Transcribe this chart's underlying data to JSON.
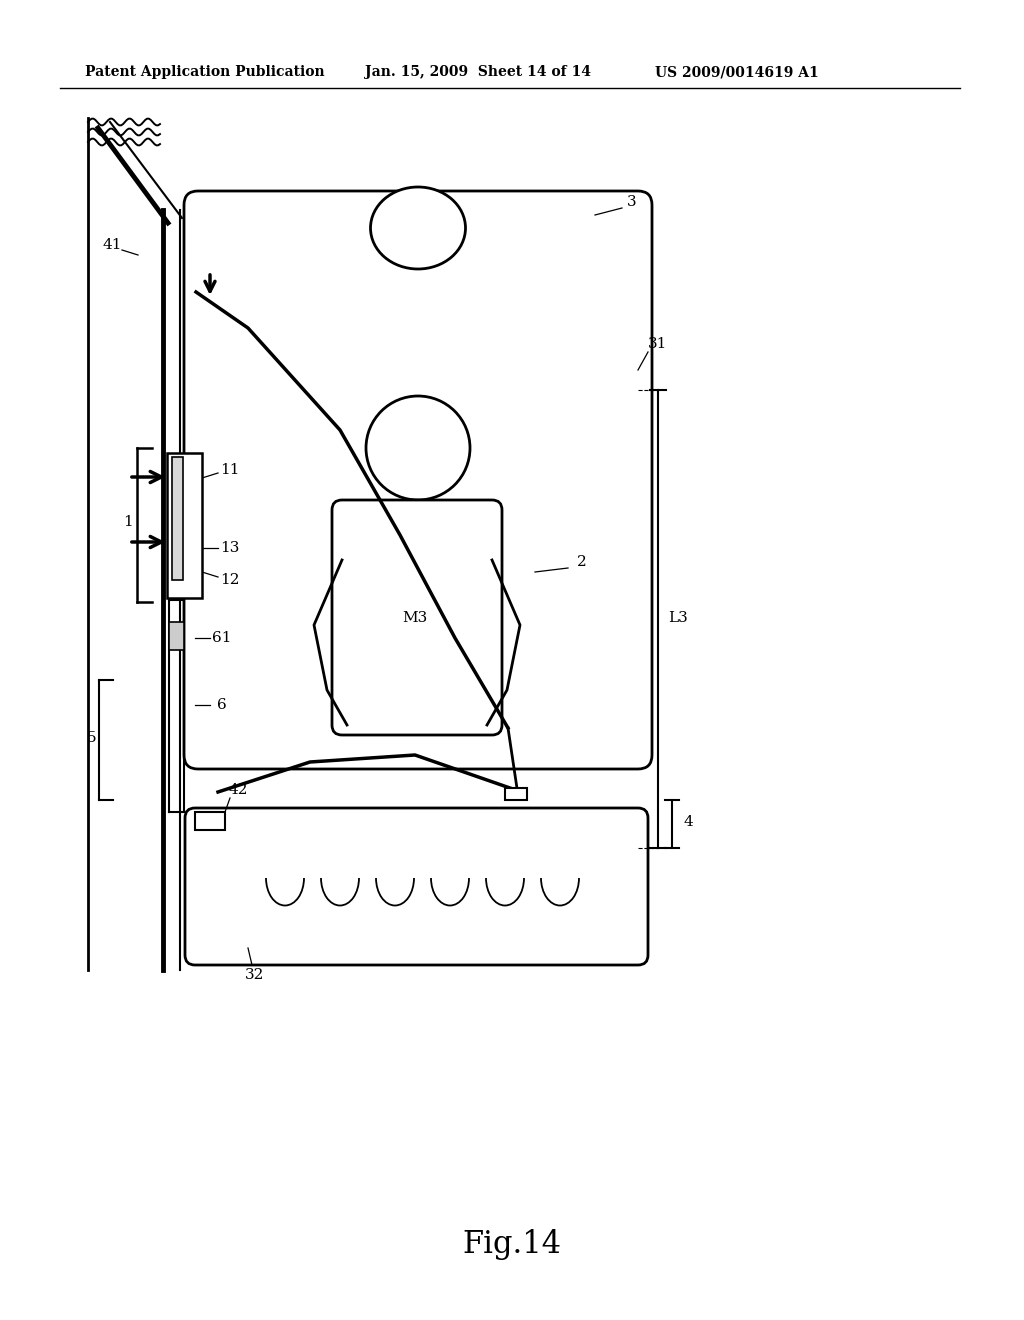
{
  "bg_color": "#ffffff",
  "line_color": "#000000",
  "header_left": "Patent Application Publication",
  "header_mid": "Jan. 15, 2009  Sheet 14 of 14",
  "header_right": "US 2009/0014619 A1",
  "figcaption": "Fig.14"
}
